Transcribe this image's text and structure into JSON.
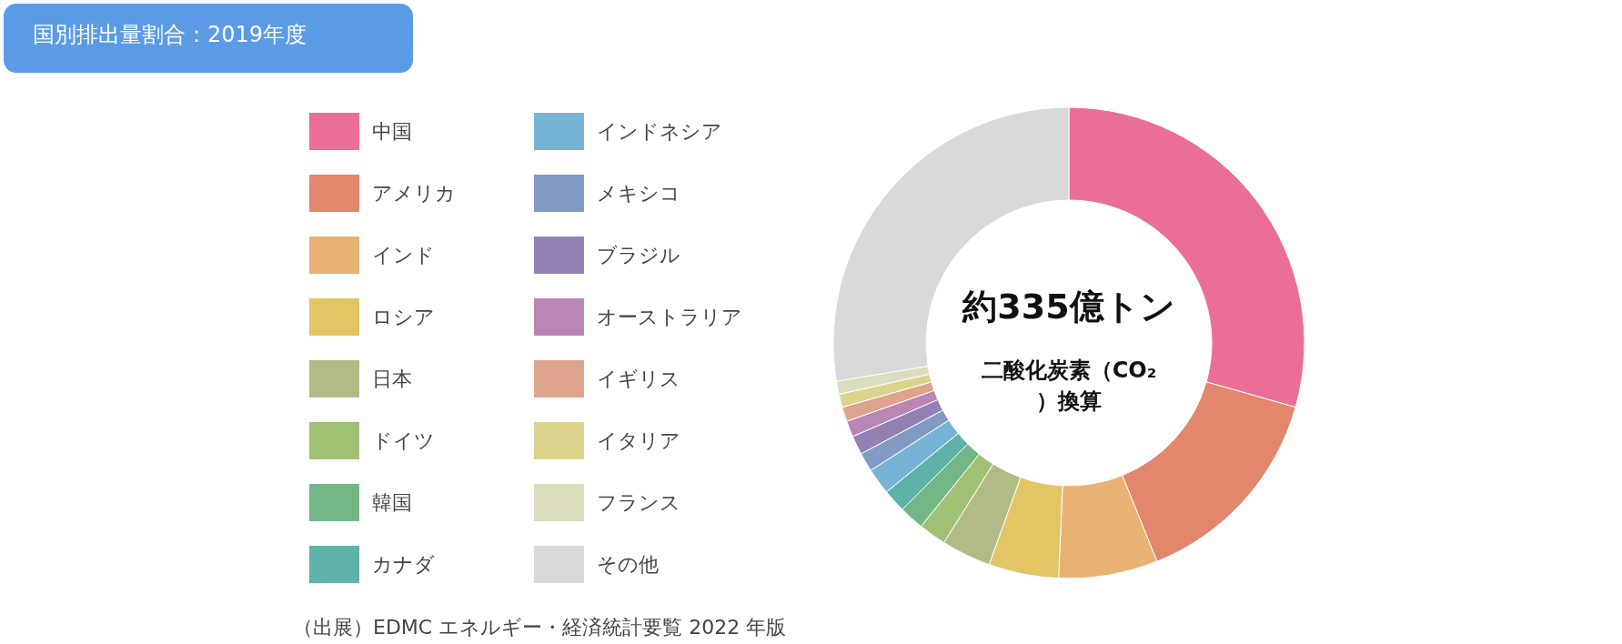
{
  "chart_data": {
    "type": "donut",
    "title": "国別排出量割合：2019年度",
    "categories": [
      "中国",
      "アメリカ",
      "インド",
      "ロシア",
      "日本",
      "ドイツ",
      "韓国",
      "カナダ",
      "インドネシア",
      "メキシコ",
      "ブラジル",
      "オーストラリア",
      "イギリス",
      "イタリア",
      "フランス",
      "その他"
    ],
    "values": [
      29.4,
      14.5,
      6.8,
      4.8,
      3.4,
      1.9,
      1.7,
      1.6,
      1.8,
      1.3,
      1.3,
      1.1,
      1.0,
      0.9,
      0.9,
      27.6
    ],
    "colors": [
      "#eb6e96",
      "#e2866c",
      "#e8b372",
      "#e2c666",
      "#b2bb85",
      "#a0c074",
      "#74b686",
      "#5fb2a8",
      "#75b4d4",
      "#819bc5",
      "#9481b4",
      "#ba86b5",
      "#dea48e",
      "#dcd48c",
      "#dcdcbe",
      "#d9d9d9"
    ],
    "legend": "left",
    "annotations": [
      "約335億トン",
      "二酸化炭素（CO₂）換算",
      "（出展）EDMC エネルギー・経済統計要覧 2022 年版"
    ]
  }
}
